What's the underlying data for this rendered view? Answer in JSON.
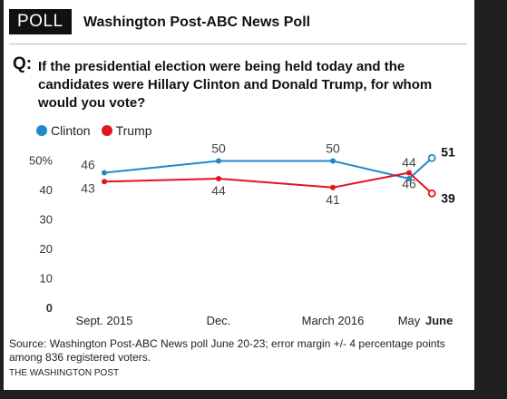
{
  "header": {
    "badge": "POLL",
    "title": "Washington Post-ABC News Poll"
  },
  "question": {
    "label": "Q:",
    "text": "If the presidential election were being held today and the candidates were Hillary Clinton and Donald Trump, for whom would you vote?"
  },
  "legend": [
    {
      "name": "Clinton",
      "color": "#1f8ac9"
    },
    {
      "name": "Trump",
      "color": "#e0151e"
    }
  ],
  "chart_data": {
    "type": "line",
    "categories": [
      "Sept. 2015",
      "Dec.",
      "March 2016",
      "May",
      "June"
    ],
    "category_positions": [
      0,
      3,
      6,
      8,
      8.6
    ],
    "ylim": [
      0,
      50
    ],
    "yticks": [
      "0",
      "10",
      "20",
      "30",
      "40",
      "50%"
    ],
    "grid": false,
    "legend_position": "top-left",
    "series": [
      {
        "name": "Clinton",
        "color": "#1f8ac9",
        "values": [
          46,
          50,
          50,
          44,
          51
        ]
      },
      {
        "name": "Trump",
        "color": "#e0151e",
        "values": [
          43,
          44,
          41,
          46,
          39
        ]
      }
    ]
  },
  "footnote": "Source: Washington Post-ABC News poll June 20-23; error margin +/- 4 percentage points among 836 registered voters.",
  "credit": "THE WASHINGTON POST"
}
